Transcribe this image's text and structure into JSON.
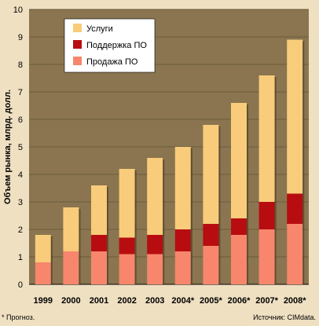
{
  "chart_data": {
    "type": "bar",
    "stacked": true,
    "categories": [
      "1999",
      "2000",
      "2001",
      "2002",
      "2003",
      "2004*",
      "2005*",
      "2006*",
      "2007*",
      "2008*"
    ],
    "series": [
      {
        "name": "Продажа ПО",
        "color": "#f7866c",
        "values": [
          0.8,
          1.2,
          1.2,
          1.1,
          1.1,
          1.2,
          1.4,
          1.8,
          2.0,
          2.2
        ]
      },
      {
        "name": "Поддержка ПО",
        "color": "#b80d10",
        "values": [
          0.0,
          0.0,
          0.6,
          0.6,
          0.7,
          0.8,
          0.8,
          0.6,
          1.0,
          1.1
        ]
      },
      {
        "name": "Услуги",
        "color": "#f8cc7a",
        "values": [
          1.0,
          1.6,
          1.8,
          2.5,
          2.8,
          3.0,
          3.6,
          4.2,
          4.6,
          5.6
        ]
      }
    ],
    "legend_order": [
      "Услуги",
      "Поддержка ПО",
      "Продажа ПО"
    ],
    "ylabel": "Объем рынка, млрд. долл.",
    "xlabel": "",
    "ylim": [
      0,
      10
    ],
    "yticks": [
      0,
      1,
      2,
      3,
      4,
      5,
      6,
      7,
      8,
      9,
      10
    ],
    "grid": true,
    "legend_position": "top-left",
    "plot_background": "#8a7550",
    "grid_color": "#6b5a3c"
  },
  "footnotes": {
    "left": "* Прогноз.",
    "right": "Источник: CIMdata."
  }
}
